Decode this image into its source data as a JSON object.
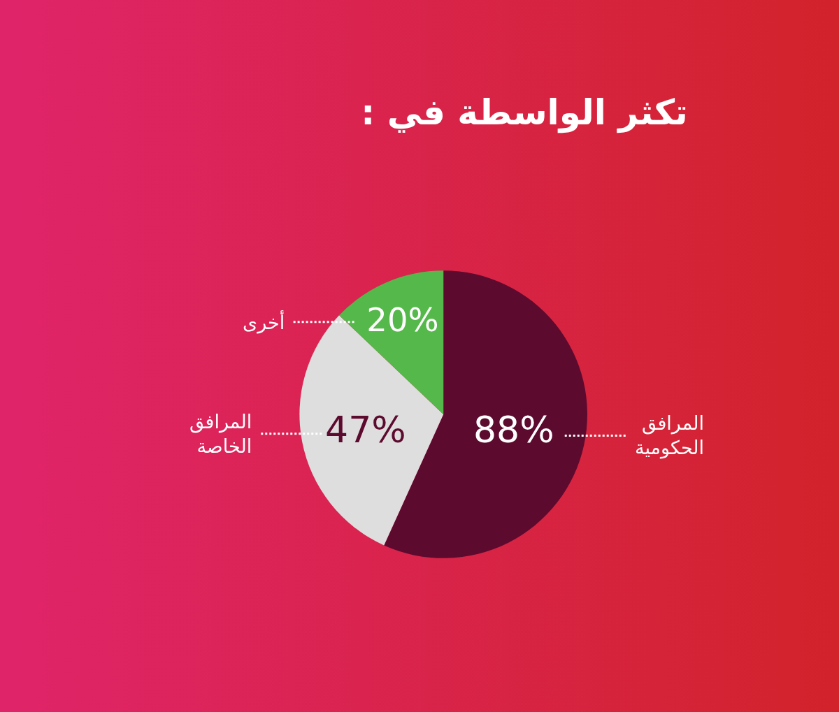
{
  "chart_data": {
    "type": "pie",
    "title": "تكثر الواسطة في :",
    "categories": [
      "المرافق الحكومية",
      "المرافق الخاصة",
      "أخرى"
    ],
    "values": [
      88,
      47,
      20
    ],
    "colors": [
      "#5c0a2e",
      "#dedede",
      "#55b84a"
    ],
    "value_labels": [
      "88%",
      "47%",
      "20%"
    ],
    "legend": false
  }
}
